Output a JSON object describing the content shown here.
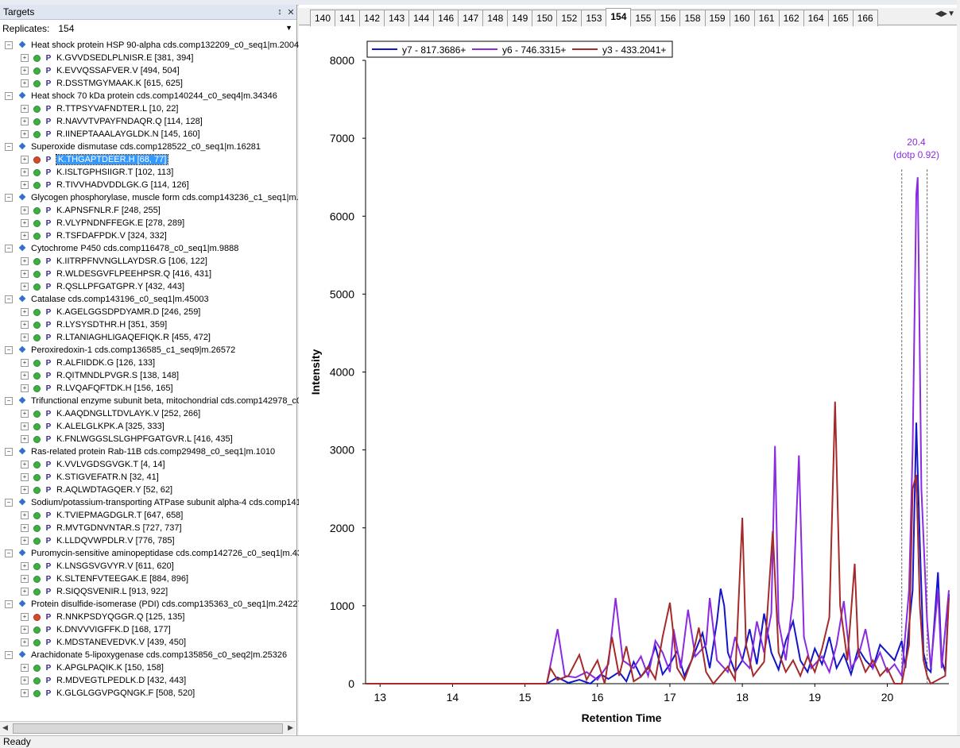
{
  "targets_panel": {
    "title": "Targets",
    "pin_icon": "pin-icon",
    "close_icon": "close-icon",
    "replicates_label": "Replicates:",
    "replicates_value": "154"
  },
  "proteins": [
    {
      "name": "Heat shock protein HSP 90-alpha cds.comp132209_c0_seq1|m.2004",
      "peptides": [
        {
          "label": "K.GVVDSEDLPLNISR.E [381, 394]",
          "status": "green"
        },
        {
          "label": "K.EVVQSSAFVER.V [494, 504]",
          "status": "green"
        },
        {
          "label": "R.DSSTMGYMAAK.K [615, 625]",
          "status": "green"
        }
      ]
    },
    {
      "name": "Heat shock 70 kDa protein cds.comp140244_c0_seq4|m.34346",
      "peptides": [
        {
          "label": "R.TTPSYVAFNDTER.L [10, 22]",
          "status": "green"
        },
        {
          "label": "R.NAVVTVPAYFNDAQR.Q [114, 128]",
          "status": "green"
        },
        {
          "label": "R.IINEPTAAALAYGLDK.N [145, 160]",
          "status": "green"
        }
      ]
    },
    {
      "name": "Superoxide dismutase cds.comp128522_c0_seq1|m.16281",
      "peptides": [
        {
          "label": "K.THGAPTDEER.H [68, 77]",
          "status": "red",
          "selected": true
        },
        {
          "label": "K.ISLTGPHSIIGR.T [102, 113]",
          "status": "green"
        },
        {
          "label": "R.TIVVHADVDDLGK.G [114, 126]",
          "status": "green"
        }
      ]
    },
    {
      "name": "Glycogen phosphorylase, muscle form cds.comp143236_c1_seq1|m.4",
      "peptides": [
        {
          "label": "K.APNSFNLR.F [248, 255]",
          "status": "green"
        },
        {
          "label": "R.VLYPNDNFFEGK.E [278, 289]",
          "status": "green"
        },
        {
          "label": "R.TSFDAFPDK.V [324, 332]",
          "status": "green"
        }
      ]
    },
    {
      "name": "Cytochrome P450 cds.comp116478_c0_seq1|m.9888",
      "peptides": [
        {
          "label": "K.IITRPFNVNGLLAYDSR.G [106, 122]",
          "status": "green"
        },
        {
          "label": "R.WLDESGVFLPEEHPSR.Q [416, 431]",
          "status": "green"
        },
        {
          "label": "R.QSLLPFGATGPR.Y [432, 443]",
          "status": "green"
        }
      ]
    },
    {
      "name": "Catalase cds.comp143196_c0_seq1|m.45003",
      "peptides": [
        {
          "label": "K.AGELGGSDPDYAMR.D [246, 259]",
          "status": "green"
        },
        {
          "label": "R.LYSYSDTHR.H [351, 359]",
          "status": "green"
        },
        {
          "label": "R.LTANIAGHLIGAQEFIQK.R [455, 472]",
          "status": "green"
        }
      ]
    },
    {
      "name": "Peroxiredoxin-1 cds.comp136585_c1_seq9|m.26572",
      "peptides": [
        {
          "label": "R.ALFIIDDK.G [126, 133]",
          "status": "green"
        },
        {
          "label": "R.QITMNDLPVGR.S [138, 148]",
          "status": "green"
        },
        {
          "label": "R.LVQAFQFTDK.H [156, 165]",
          "status": "green"
        }
      ]
    },
    {
      "name": "Trifunctional enzyme subunit beta, mitochondrial  cds.comp142978_c0",
      "peptides": [
        {
          "label": "K.AAQDNGLLTDVLAYK.V [252, 266]",
          "status": "green"
        },
        {
          "label": "K.ALELGLKPK.A [325, 333]",
          "status": "green"
        },
        {
          "label": "K.FNLWGGSLSLGHPFGATGVR.L [416, 435]",
          "status": "green"
        }
      ]
    },
    {
      "name": "Ras-related protein Rab-11B cds.comp29498_c0_seq1|m.1010",
      "peptides": [
        {
          "label": "K.VVLVGDSGVGK.T [4, 14]",
          "status": "green"
        },
        {
          "label": "K.STIGVEFATR.N [32, 41]",
          "status": "green"
        },
        {
          "label": "R.AQLWDTAGQER.Y [52, 62]",
          "status": "green"
        }
      ]
    },
    {
      "name": "Sodium/potassium-transporting ATPase subunit alpha-4  cds.comp141",
      "peptides": [
        {
          "label": "K.TVIEPMAGDGLR.T [647, 658]",
          "status": "green"
        },
        {
          "label": "R.MVTGDNVNTAR.S [727, 737]",
          "status": "green"
        },
        {
          "label": "K.LLDQVWPDLR.V [776, 785]",
          "status": "green"
        }
      ]
    },
    {
      "name": "Puromycin-sensitive aminopeptidase cds.comp142726_c0_seq1|m.43",
      "peptides": [
        {
          "label": "K.LNSGSVGVYR.V [611, 620]",
          "status": "green"
        },
        {
          "label": "K.SLTENFVTEEGAK.E [884, 896]",
          "status": "green"
        },
        {
          "label": "R.SIQQSVENIR.L [913, 922]",
          "status": "green"
        }
      ]
    },
    {
      "name": "Protein disulfide-isomerase (PDI) cds.comp135363_c0_seq1|m.24227",
      "peptides": [
        {
          "label": "R.NNKPSDYQGGR.Q [125, 135]",
          "status": "red"
        },
        {
          "label": "K.DNVVVIGFFK.D [168, 177]",
          "status": "green"
        },
        {
          "label": "K.MDSTANEVEDVK.V [439, 450]",
          "status": "green"
        }
      ]
    },
    {
      "name": "Arachidonate 5-lipoxygenase cds.comp135856_c0_seq2|m.25326",
      "peptides": [
        {
          "label": "K.APGLPAQIK.K [150, 158]",
          "status": "green"
        },
        {
          "label": "R.MDVEGTLPEDLK.D [432, 443]",
          "status": "green"
        },
        {
          "label": "K.GLGLGGVPGQNGK.F [508, 520]",
          "status": "green"
        }
      ]
    }
  ],
  "tabs": [
    "140",
    "141",
    "142",
    "143",
    "144",
    "146",
    "147",
    "148",
    "149",
    "150",
    "152",
    "153",
    "154",
    "155",
    "156",
    "158",
    "159",
    "160",
    "161",
    "162",
    "164",
    "165",
    "166"
  ],
  "active_tab": "154",
  "tab_nav_icons": "tab-nav-icons",
  "chart_data": {
    "type": "line",
    "xlabel": "Retention Time",
    "ylabel": "Intensity",
    "xlim": [
      12.8,
      20.85
    ],
    "ylim": [
      0,
      8000
    ],
    "xticks": [
      13,
      14,
      15,
      16,
      17,
      18,
      19,
      20
    ],
    "yticks": [
      0,
      1000,
      2000,
      3000,
      4000,
      5000,
      6000,
      7000,
      8000
    ],
    "legend_position": "top-left",
    "annotation": {
      "x": 20.4,
      "line1": "20.4",
      "line2": "(dotp 0.92)"
    },
    "boundaries": [
      20.2,
      20.55
    ],
    "series": [
      {
        "name": "y7 - 817.3686+",
        "color": "#1414c8",
        "points": [
          [
            12.8,
            0
          ],
          [
            15.3,
            0
          ],
          [
            15.45,
            80
          ],
          [
            15.6,
            10
          ],
          [
            15.75,
            50
          ],
          [
            15.9,
            0
          ],
          [
            16.05,
            120
          ],
          [
            16.15,
            60
          ],
          [
            16.3,
            150
          ],
          [
            16.4,
            30
          ],
          [
            16.5,
            280
          ],
          [
            16.6,
            90
          ],
          [
            16.7,
            200
          ],
          [
            16.8,
            480
          ],
          [
            16.9,
            120
          ],
          [
            17.0,
            250
          ],
          [
            17.1,
            420
          ],
          [
            17.2,
            100
          ],
          [
            17.3,
            300
          ],
          [
            17.45,
            650
          ],
          [
            17.55,
            200
          ],
          [
            17.65,
            800
          ],
          [
            17.7,
            1220
          ],
          [
            17.75,
            1000
          ],
          [
            17.8,
            400
          ],
          [
            17.9,
            150
          ],
          [
            18.0,
            300
          ],
          [
            18.1,
            700
          ],
          [
            18.2,
            250
          ],
          [
            18.3,
            900
          ],
          [
            18.4,
            400
          ],
          [
            18.5,
            180
          ],
          [
            18.6,
            550
          ],
          [
            18.7,
            800
          ],
          [
            18.8,
            300
          ],
          [
            18.9,
            150
          ],
          [
            19.0,
            450
          ],
          [
            19.1,
            250
          ],
          [
            19.2,
            600
          ],
          [
            19.3,
            200
          ],
          [
            19.4,
            380
          ],
          [
            19.5,
            120
          ],
          [
            19.6,
            450
          ],
          [
            19.7,
            300
          ],
          [
            19.8,
            200
          ],
          [
            19.9,
            500
          ],
          [
            20.0,
            400
          ],
          [
            20.1,
            300
          ],
          [
            20.2,
            550
          ],
          [
            20.25,
            200
          ],
          [
            20.3,
            750
          ],
          [
            20.35,
            1200
          ],
          [
            20.4,
            3350
          ],
          [
            20.45,
            1800
          ],
          [
            20.5,
            400
          ],
          [
            20.55,
            200
          ],
          [
            20.6,
            150
          ],
          [
            20.7,
            1430
          ],
          [
            20.75,
            300
          ],
          [
            20.8,
            150
          ],
          [
            20.85,
            1150
          ]
        ]
      },
      {
        "name": "y6 - 746.3315+",
        "color": "#8a2be2",
        "points": [
          [
            12.8,
            0
          ],
          [
            15.3,
            0
          ],
          [
            15.45,
            700
          ],
          [
            15.55,
            100
          ],
          [
            15.7,
            80
          ],
          [
            15.85,
            150
          ],
          [
            16.0,
            50
          ],
          [
            16.15,
            250
          ],
          [
            16.25,
            1100
          ],
          [
            16.35,
            300
          ],
          [
            16.5,
            200
          ],
          [
            16.6,
            350
          ],
          [
            16.7,
            100
          ],
          [
            16.8,
            550
          ],
          [
            16.9,
            400
          ],
          [
            17.0,
            150
          ],
          [
            17.05,
            700
          ],
          [
            17.15,
            200
          ],
          [
            17.25,
            950
          ],
          [
            17.35,
            350
          ],
          [
            17.5,
            500
          ],
          [
            17.55,
            1100
          ],
          [
            17.65,
            300
          ],
          [
            17.8,
            150
          ],
          [
            17.9,
            600
          ],
          [
            18.0,
            300
          ],
          [
            18.1,
            200
          ],
          [
            18.2,
            800
          ],
          [
            18.3,
            400
          ],
          [
            18.4,
            900
          ],
          [
            18.45,
            3050
          ],
          [
            18.5,
            800
          ],
          [
            18.6,
            300
          ],
          [
            18.7,
            1100
          ],
          [
            18.78,
            2930
          ],
          [
            18.85,
            600
          ],
          [
            18.95,
            200
          ],
          [
            19.1,
            350
          ],
          [
            19.2,
            150
          ],
          [
            19.3,
            500
          ],
          [
            19.4,
            1060
          ],
          [
            19.5,
            200
          ],
          [
            19.6,
            350
          ],
          [
            19.7,
            700
          ],
          [
            19.8,
            200
          ],
          [
            19.9,
            400
          ],
          [
            20.0,
            150
          ],
          [
            20.1,
            250
          ],
          [
            20.2,
            100
          ],
          [
            20.3,
            1200
          ],
          [
            20.35,
            3000
          ],
          [
            20.4,
            6280
          ],
          [
            20.42,
            6500
          ],
          [
            20.47,
            2500
          ],
          [
            20.55,
            800
          ],
          [
            20.6,
            200
          ],
          [
            20.7,
            1200
          ],
          [
            20.75,
            200
          ],
          [
            20.85,
            1200
          ]
        ]
      },
      {
        "name": "y3 - 433.2041+",
        "color": "#a52a2a",
        "points": [
          [
            12.8,
            0
          ],
          [
            15.3,
            0
          ],
          [
            15.35,
            200
          ],
          [
            15.45,
            50
          ],
          [
            15.6,
            100
          ],
          [
            15.75,
            370
          ],
          [
            15.85,
            50
          ],
          [
            16.0,
            300
          ],
          [
            16.1,
            0
          ],
          [
            16.2,
            600
          ],
          [
            16.3,
            100
          ],
          [
            16.4,
            480
          ],
          [
            16.5,
            30
          ],
          [
            16.6,
            90
          ],
          [
            16.7,
            220
          ],
          [
            16.8,
            60
          ],
          [
            16.9,
            600
          ],
          [
            17.0,
            1040
          ],
          [
            17.1,
            200
          ],
          [
            17.2,
            50
          ],
          [
            17.3,
            300
          ],
          [
            17.4,
            720
          ],
          [
            17.5,
            150
          ],
          [
            17.6,
            0
          ],
          [
            17.8,
            220
          ],
          [
            17.9,
            50
          ],
          [
            18.0,
            2130
          ],
          [
            18.05,
            500
          ],
          [
            18.15,
            100
          ],
          [
            18.3,
            280
          ],
          [
            18.42,
            1960
          ],
          [
            18.5,
            400
          ],
          [
            18.6,
            150
          ],
          [
            18.7,
            300
          ],
          [
            18.8,
            100
          ],
          [
            18.9,
            350
          ],
          [
            19.0,
            150
          ],
          [
            19.1,
            450
          ],
          [
            19.2,
            850
          ],
          [
            19.28,
            3620
          ],
          [
            19.35,
            1000
          ],
          [
            19.45,
            300
          ],
          [
            19.55,
            1540
          ],
          [
            19.6,
            400
          ],
          [
            19.7,
            150
          ],
          [
            19.8,
            300
          ],
          [
            19.9,
            100
          ],
          [
            20.0,
            200
          ],
          [
            20.1,
            0
          ],
          [
            20.2,
            0
          ],
          [
            20.3,
            500
          ],
          [
            20.35,
            2500
          ],
          [
            20.4,
            2680
          ],
          [
            20.45,
            1000
          ],
          [
            20.5,
            300
          ],
          [
            20.55,
            100
          ],
          [
            20.6,
            0
          ],
          [
            20.8,
            100
          ],
          [
            20.85,
            1100
          ]
        ]
      }
    ]
  },
  "status_text": "Ready"
}
